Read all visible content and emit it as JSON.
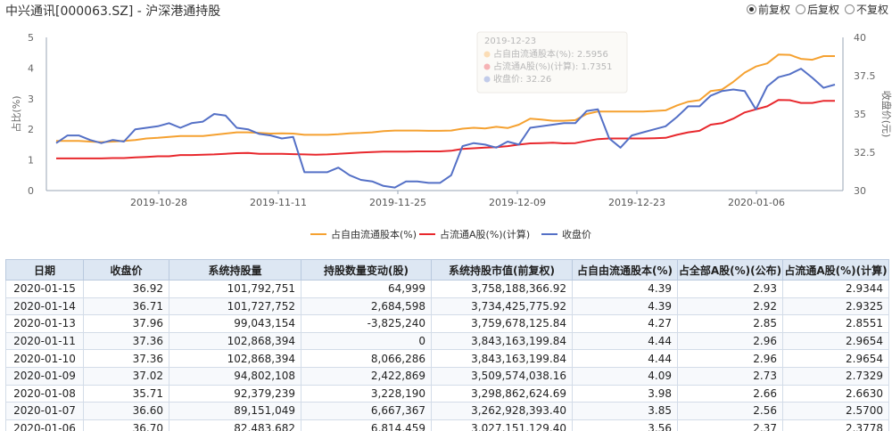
{
  "header": {
    "title": "中兴通讯[000063.SZ] - 沪深港通持股",
    "adjust_options": [
      {
        "label": "前复权",
        "selected": true
      },
      {
        "label": "后复权",
        "selected": false
      },
      {
        "label": "不复权",
        "selected": false
      }
    ]
  },
  "chart_data": {
    "type": "line",
    "x_tick_labels": [
      "2019-10-28",
      "2019-11-11",
      "2019-11-25",
      "2019-12-09",
      "2019-12-23",
      "2020-01-06"
    ],
    "y_left": {
      "label": "占比(%)",
      "ticks": [
        "0",
        "1",
        "2",
        "3",
        "4",
        "5"
      ],
      "range": [
        0,
        5
      ]
    },
    "y_right": {
      "label": "收盘价(元)",
      "ticks": [
        "30",
        "32.5",
        "35",
        "37.5",
        "40"
      ],
      "range": [
        30,
        40
      ]
    },
    "series": [
      {
        "name": "占自由流通股本(%)",
        "color": "#f5a130",
        "axis": "left",
        "values": [
          1.62,
          1.62,
          1.62,
          1.6,
          1.58,
          1.6,
          1.62,
          1.65,
          1.7,
          1.72,
          1.75,
          1.78,
          1.78,
          1.78,
          1.82,
          1.86,
          1.9,
          1.9,
          1.88,
          1.86,
          1.87,
          1.86,
          1.82,
          1.82,
          1.82,
          1.84,
          1.87,
          1.88,
          1.9,
          1.94,
          1.96,
          1.96,
          1.96,
          1.95,
          1.95,
          1.96,
          2.02,
          2.05,
          2.03,
          2.08,
          2.04,
          2.15,
          2.35,
          2.32,
          2.28,
          2.28,
          2.3,
          2.5,
          2.58,
          2.58,
          2.58,
          2.58,
          2.58,
          2.6,
          2.62,
          2.78,
          2.9,
          2.95,
          3.25,
          3.3,
          3.55,
          3.85,
          4.05,
          4.15,
          4.44,
          4.43,
          4.3,
          4.27,
          4.39,
          4.39
        ]
      },
      {
        "name": "占流通A股(%)(计算)",
        "color": "#e8282d",
        "axis": "left",
        "values": [
          1.05,
          1.05,
          1.05,
          1.05,
          1.05,
          1.06,
          1.06,
          1.08,
          1.1,
          1.12,
          1.12,
          1.16,
          1.16,
          1.17,
          1.18,
          1.2,
          1.22,
          1.23,
          1.2,
          1.2,
          1.2,
          1.19,
          1.18,
          1.17,
          1.18,
          1.2,
          1.22,
          1.24,
          1.26,
          1.27,
          1.27,
          1.27,
          1.28,
          1.28,
          1.28,
          1.3,
          1.36,
          1.38,
          1.4,
          1.42,
          1.45,
          1.5,
          1.54,
          1.55,
          1.56,
          1.54,
          1.55,
          1.62,
          1.68,
          1.7,
          1.7,
          1.7,
          1.7,
          1.71,
          1.72,
          1.82,
          1.9,
          1.95,
          2.15,
          2.2,
          2.35,
          2.55,
          2.65,
          2.75,
          2.96,
          2.95,
          2.86,
          2.86,
          2.93,
          2.93
        ]
      },
      {
        "name": "收盘价",
        "color": "#5470c6",
        "axis": "right",
        "values": [
          33.1,
          33.6,
          33.6,
          33.3,
          33.1,
          33.3,
          33.2,
          34.0,
          34.1,
          34.2,
          34.4,
          34.1,
          34.4,
          34.5,
          35.0,
          34.9,
          34.1,
          34.0,
          33.7,
          33.6,
          33.4,
          33.5,
          31.2,
          31.2,
          31.2,
          31.5,
          31.0,
          30.7,
          30.6,
          30.3,
          30.2,
          30.6,
          30.6,
          30.5,
          30.5,
          31.0,
          32.9,
          33.1,
          33.0,
          32.8,
          33.2,
          33.0,
          34.1,
          34.2,
          34.3,
          34.4,
          34.4,
          35.2,
          35.3,
          33.4,
          32.8,
          33.6,
          33.8,
          34.0,
          34.2,
          34.8,
          35.5,
          35.5,
          36.2,
          36.5,
          36.6,
          36.5,
          35.3,
          36.8,
          37.4,
          37.6,
          37.96,
          37.36,
          36.71,
          36.92
        ]
      }
    ],
    "tooltip": {
      "date": "2019-12-23",
      "rows": [
        {
          "label": "占自由流通股本(%)",
          "value": "2.5956",
          "color": "#f5a130"
        },
        {
          "label": "占流通A股(%)(计算)",
          "value": "1.7351",
          "color": "#e8282d"
        },
        {
          "label": "收盘价",
          "value": "32.26",
          "color": "#5470c6"
        }
      ]
    },
    "legend": [
      "占自由流通股本(%)",
      "占流通A股(%)(计算)",
      "收盘价"
    ]
  },
  "table": {
    "headers": [
      "日期",
      "收盘价",
      "系统持股量",
      "持股数量变动(股)",
      "系统持股市值(前复权)",
      "占自由流通股本(%)",
      "占全部A股(%)(公布)",
      "占流通A股(%)(计算)"
    ],
    "rows": [
      [
        "2020-01-15",
        "36.92",
        "101,792,751",
        "64,999",
        "3,758,188,366.92",
        "4.39",
        "2.93",
        "2.9344"
      ],
      [
        "2020-01-14",
        "36.71",
        "101,727,752",
        "2,684,598",
        "3,734,425,775.92",
        "4.39",
        "2.92",
        "2.9325"
      ],
      [
        "2020-01-13",
        "37.96",
        "99,043,154",
        "-3,825,240",
        "3,759,678,125.84",
        "4.27",
        "2.85",
        "2.8551"
      ],
      [
        "2020-01-11",
        "37.36",
        "102,868,394",
        "0",
        "3,843,163,199.84",
        "4.44",
        "2.96",
        "2.9654"
      ],
      [
        "2020-01-10",
        "37.36",
        "102,868,394",
        "8,066,286",
        "3,843,163,199.84",
        "4.44",
        "2.96",
        "2.9654"
      ],
      [
        "2020-01-09",
        "37.02",
        "94,802,108",
        "2,422,869",
        "3,509,574,038.16",
        "4.09",
        "2.73",
        "2.7329"
      ],
      [
        "2020-01-08",
        "35.71",
        "92,379,239",
        "3,228,190",
        "3,298,862,624.69",
        "3.98",
        "2.66",
        "2.6630"
      ],
      [
        "2020-01-07",
        "36.60",
        "89,151,049",
        "6,667,367",
        "3,262,928,393.40",
        "3.85",
        "2.56",
        "2.5700"
      ],
      [
        "2020-01-06",
        "36.70",
        "82,483,682",
        "6,814,459",
        "3,027,151,129.40",
        "3.56",
        "2.37",
        "2.3778"
      ]
    ]
  }
}
